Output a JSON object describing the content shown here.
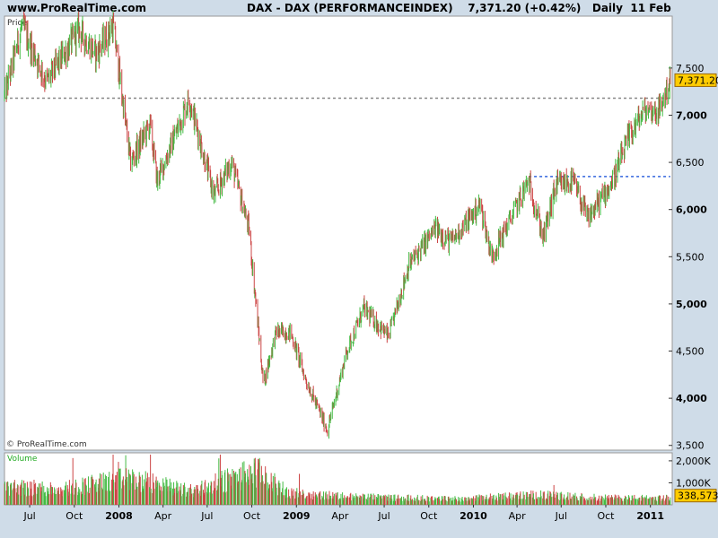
{
  "header": {
    "site": "www.ProRealTime.com",
    "title": "DAX - DAX (PERFORMANCEINDEX)",
    "last": "7,371.20",
    "change": "(+0.42%)",
    "period": "Daily",
    "date": "11 Feb"
  },
  "colors": {
    "up": "#44bb44",
    "down": "#cc4444",
    "resistance": "#888888",
    "support": "#3366dd",
    "tag": "#ffcc00"
  },
  "chart_data": {
    "type": "candlestick",
    "price_panel": {
      "label": "Price",
      "copyright": "© ProRealTime.com",
      "ylim": [
        3450,
        8050
      ],
      "yticks": [
        3500,
        4000,
        4500,
        5000,
        5500,
        6000,
        6500,
        7000,
        7500
      ],
      "ytick_labels": [
        "3,500",
        "4,000",
        "4,500",
        "5,000",
        "5,500",
        "6,000",
        "6,500",
        "7,000",
        "7,500"
      ],
      "ytick_bold": [
        false,
        true,
        false,
        true,
        false,
        true,
        false,
        true,
        false
      ],
      "last_price": 7371.2,
      "last_price_label": "7,371.20",
      "hlines": [
        {
          "name": "resistance",
          "value": 7180,
          "from": "2007-05-10",
          "to": "2011-02-11",
          "style": "dashed"
        },
        {
          "name": "support",
          "value": 6350,
          "from": "2010-04-25",
          "to": "2011-02-11",
          "style": "dashed"
        }
      ],
      "series": [
        {
          "date": "2007-05-10",
          "close": 7200
        },
        {
          "date": "2007-06-15",
          "close": 7950
        },
        {
          "date": "2007-08-05",
          "close": 7350
        },
        {
          "date": "2007-10-10",
          "close": 7900
        },
        {
          "date": "2007-11-15",
          "close": 7650
        },
        {
          "date": "2007-12-20",
          "close": 7950
        },
        {
          "date": "2008-01-25",
          "close": 6500
        },
        {
          "date": "2008-03-05",
          "close": 6900
        },
        {
          "date": "2008-03-20",
          "close": 6300
        },
        {
          "date": "2008-05-25",
          "close": 7180
        },
        {
          "date": "2008-07-15",
          "close": 6150
        },
        {
          "date": "2008-08-20",
          "close": 6500
        },
        {
          "date": "2008-09-25",
          "close": 5800
        },
        {
          "date": "2008-10-25",
          "close": 4150
        },
        {
          "date": "2008-11-20",
          "close": 4700
        },
        {
          "date": "2008-12-20",
          "close": 4700
        },
        {
          "date": "2009-01-20",
          "close": 4200
        },
        {
          "date": "2009-03-06",
          "close": 3660
        },
        {
          "date": "2009-04-15",
          "close": 4500
        },
        {
          "date": "2009-05-20",
          "close": 4950
        },
        {
          "date": "2009-07-10",
          "close": 4650
        },
        {
          "date": "2009-08-20",
          "close": 5400
        },
        {
          "date": "2009-10-15",
          "close": 5800
        },
        {
          "date": "2009-11-15",
          "close": 5650
        },
        {
          "date": "2010-01-15",
          "close": 6050
        },
        {
          "date": "2010-02-08",
          "close": 5500
        },
        {
          "date": "2010-04-25",
          "close": 6300
        },
        {
          "date": "2010-05-25",
          "close": 5700
        },
        {
          "date": "2010-06-20",
          "close": 6250
        },
        {
          "date": "2010-07-25",
          "close": 6300
        },
        {
          "date": "2010-08-25",
          "close": 5900
        },
        {
          "date": "2010-10-15",
          "close": 6300
        },
        {
          "date": "2010-11-20",
          "close": 6800
        },
        {
          "date": "2010-12-20",
          "close": 7050
        },
        {
          "date": "2011-01-20",
          "close": 7050
        },
        {
          "date": "2011-02-11",
          "close": 7371
        }
      ]
    },
    "volume_panel": {
      "label": "Volume",
      "ylim": [
        0,
        2200000
      ],
      "yticks": [
        1000000,
        2000000
      ],
      "ytick_labels": [
        "1,000K",
        "2,000K"
      ],
      "last_volume": 338573,
      "last_volume_label": "338,573",
      "series": [
        {
          "date": "2007-05-10",
          "volume": 900000
        },
        {
          "date": "2007-09-01",
          "volume": 800000
        },
        {
          "date": "2008-01-20",
          "volume": 1300000
        },
        {
          "date": "2008-06-01",
          "volume": 700000
        },
        {
          "date": "2008-10-10",
          "volume": 1700000
        },
        {
          "date": "2008-12-15",
          "volume": 600000
        },
        {
          "date": "2009-05-01",
          "volume": 400000
        },
        {
          "date": "2009-12-01",
          "volume": 300000
        },
        {
          "date": "2010-05-10",
          "volume": 500000
        },
        {
          "date": "2010-10-01",
          "volume": 350000
        },
        {
          "date": "2011-02-11",
          "volume": 338573
        }
      ]
    },
    "x_axis": {
      "xlim": [
        "2007-05-10",
        "2011-02-15"
      ],
      "ticks": [
        {
          "date": "2007-07-01",
          "label": "Jul",
          "bold": false
        },
        {
          "date": "2007-10-01",
          "label": "Oct",
          "bold": false
        },
        {
          "date": "2008-01-01",
          "label": "2008",
          "bold": true
        },
        {
          "date": "2008-04-01",
          "label": "Apr",
          "bold": false
        },
        {
          "date": "2008-07-01",
          "label": "Jul",
          "bold": false
        },
        {
          "date": "2008-10-01",
          "label": "Oct",
          "bold": false
        },
        {
          "date": "2009-01-01",
          "label": "2009",
          "bold": true
        },
        {
          "date": "2009-04-01",
          "label": "Apr",
          "bold": false
        },
        {
          "date": "2009-07-01",
          "label": "Jul",
          "bold": false
        },
        {
          "date": "2009-10-01",
          "label": "Oct",
          "bold": false
        },
        {
          "date": "2010-01-01",
          "label": "2010",
          "bold": true
        },
        {
          "date": "2010-04-01",
          "label": "Apr",
          "bold": false
        },
        {
          "date": "2010-07-01",
          "label": "Jul",
          "bold": false
        },
        {
          "date": "2010-10-01",
          "label": "Oct",
          "bold": false
        },
        {
          "date": "2011-01-01",
          "label": "2011",
          "bold": true
        }
      ]
    }
  }
}
